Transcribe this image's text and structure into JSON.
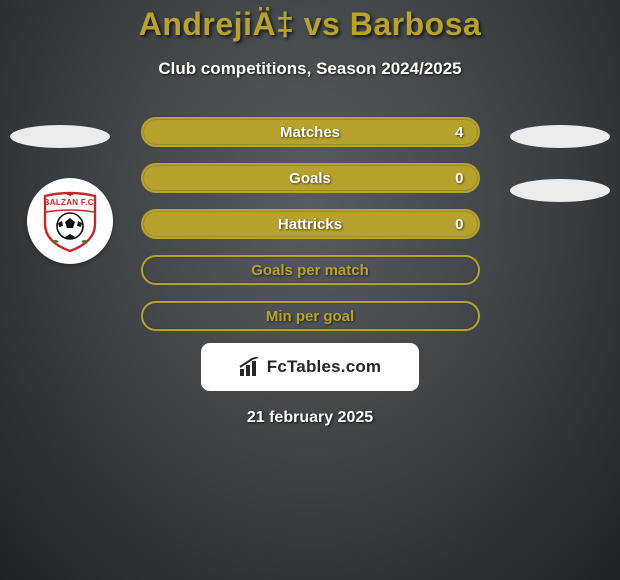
{
  "title": {
    "text": "AndrejiÄ‡ vs Barbosa",
    "color": "#b7a22e"
  },
  "subtitle": "Club competitions, Season 2024/2025",
  "bars": [
    {
      "label": "Matches",
      "left": "",
      "right": "4",
      "fill": "#b7a22e",
      "border": "#b7a22e"
    },
    {
      "label": "Goals",
      "left": "",
      "right": "0",
      "fill": "#b7a22e",
      "border": "#b7a22e"
    },
    {
      "label": "Hattricks",
      "left": "",
      "right": "0",
      "fill": "#b7a22e",
      "border": "#b7a22e"
    },
    {
      "label": "Goals per match",
      "left": "",
      "right": "",
      "fill": "transparent",
      "border": "#b7a22e"
    },
    {
      "label": "Min per goal",
      "left": "",
      "right": "",
      "fill": "transparent",
      "border": "#b7a22e"
    }
  ],
  "ellipse_color": "#ececec",
  "logo": {
    "bg": "#ffffff",
    "text": "FcTables.com",
    "icon_color": "#272727"
  },
  "date": "21 february 2025",
  "club_badge": {
    "text": "BALZAN F.C.",
    "red": "#c62828",
    "green": "#2e7d32",
    "white": "#ffffff"
  }
}
